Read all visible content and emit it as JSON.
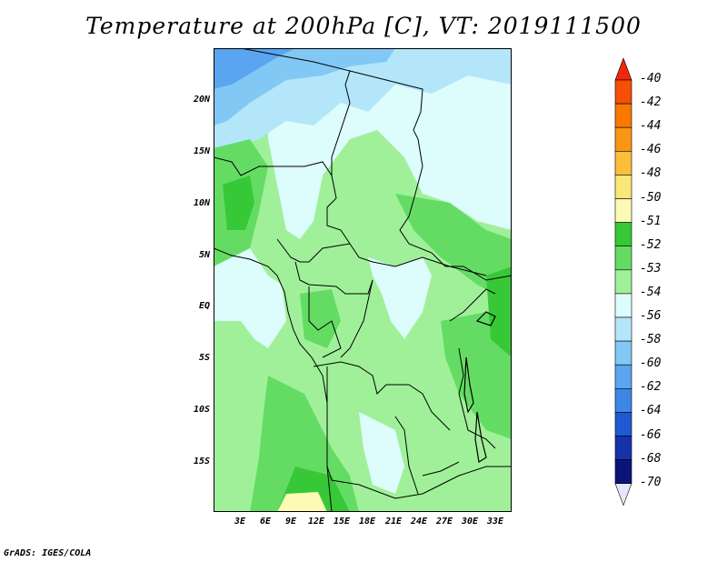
{
  "title": "Temperature at 200hPa [C], VT: 2019111500",
  "credit": "GrADS: IGES/COLA",
  "lat_labels": [
    "20N",
    "15N",
    "10N",
    "5N",
    "EQ",
    "5S",
    "10S",
    "15S"
  ],
  "lon_labels": [
    "3E",
    "6E",
    "9E",
    "12E",
    "15E",
    "18E",
    "21E",
    "24E",
    "27E",
    "30E",
    "33E"
  ],
  "legend": {
    "levels": [
      "-40",
      "-42",
      "-44",
      "-46",
      "-48",
      "-50",
      "-51",
      "-52",
      "-53",
      "-54",
      "-56",
      "-58",
      "-60",
      "-62",
      "-64",
      "-66",
      "-68",
      "-70"
    ],
    "colors": [
      "#f0280a",
      "#f55005",
      "#f87800",
      "#fa9614",
      "#fbbe3c",
      "#fbe678",
      "#fcfab4",
      "#37c837",
      "#64dc64",
      "#a0f09a",
      "#ddfcfc",
      "#b4e6fa",
      "#82c8f5",
      "#5aa5f0",
      "#3c87e6",
      "#1e5ad2",
      "#1432aa",
      "#0a1478",
      "#e6e6fa"
    ]
  },
  "map_colors": {
    "c_m51": "#fcfab4",
    "c_m52": "#37c837",
    "c_m53": "#64dc64",
    "c_m54": "#a0f09a",
    "c_m56": "#ddfcfc",
    "c_m58": "#b4e6fa",
    "c_m60": "#82c8f5",
    "c_m62": "#5aa5f0"
  }
}
